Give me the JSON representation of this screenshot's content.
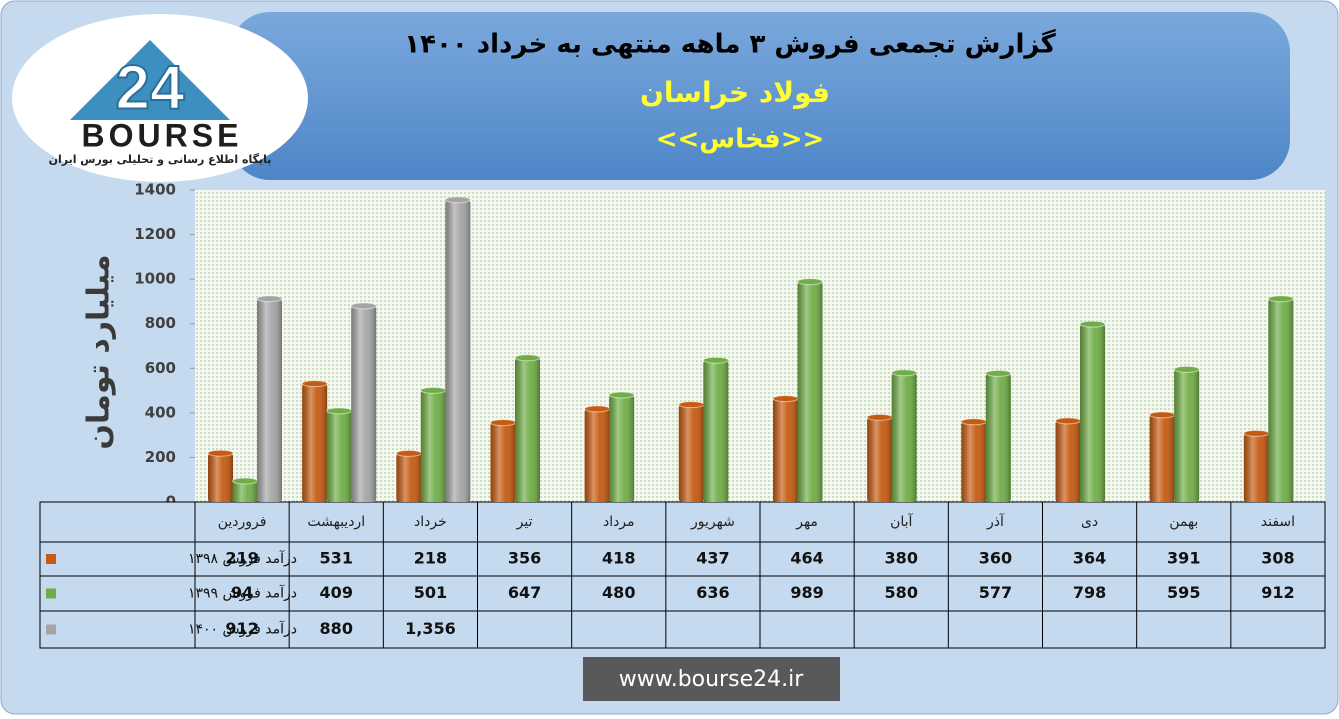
{
  "chart_data": {
    "type": "bar",
    "title": "گزارش تجمعی فروش ۳ ماهه منتهی به خرداد ۱۴۰۰",
    "subtitle": "فولاد خراسان",
    "symbol": "<<فخاس>>",
    "y_label": "میلیارد تومان",
    "categories": [
      "فروردین",
      "اردیبهشت",
      "خرداد",
      "تیر",
      "مرداد",
      "شهریور",
      "مهر",
      "آبان",
      "آذر",
      "دی",
      "بهمن",
      "اسفند"
    ],
    "series": [
      {
        "name": "درآمد فروش ۱۳۹۸",
        "color": "#c55a11",
        "values": [
          219,
          531,
          218,
          356,
          418,
          437,
          464,
          380,
          360,
          364,
          391,
          308
        ]
      },
      {
        "name": "درآمد فروش ۱۳۹۹",
        "color": "#70ad47",
        "values": [
          94,
          409,
          501,
          647,
          480,
          636,
          989,
          580,
          577,
          798,
          595,
          912
        ]
      },
      {
        "name": "درآمد فروش ۱۴۰۰",
        "color": "#a5a5a5",
        "values": [
          912,
          880,
          1356,
          null,
          null,
          null,
          null,
          null,
          null,
          null,
          null,
          null
        ],
        "value_labels": [
          "912",
          "880",
          "1,356",
          null,
          null,
          null,
          null,
          null,
          null,
          null,
          null,
          null
        ]
      }
    ],
    "ylim": [
      0,
      1400
    ],
    "yticks": [
      0,
      200,
      400,
      600,
      800,
      1000,
      1200,
      1400
    ],
    "grid": false
  },
  "logo": {
    "number": "24",
    "text": "BOURSE",
    "tagline": "پایگاه اطلاع رسانی و تحلیلی بورس ایران"
  },
  "footer": "www.bourse24.ir"
}
